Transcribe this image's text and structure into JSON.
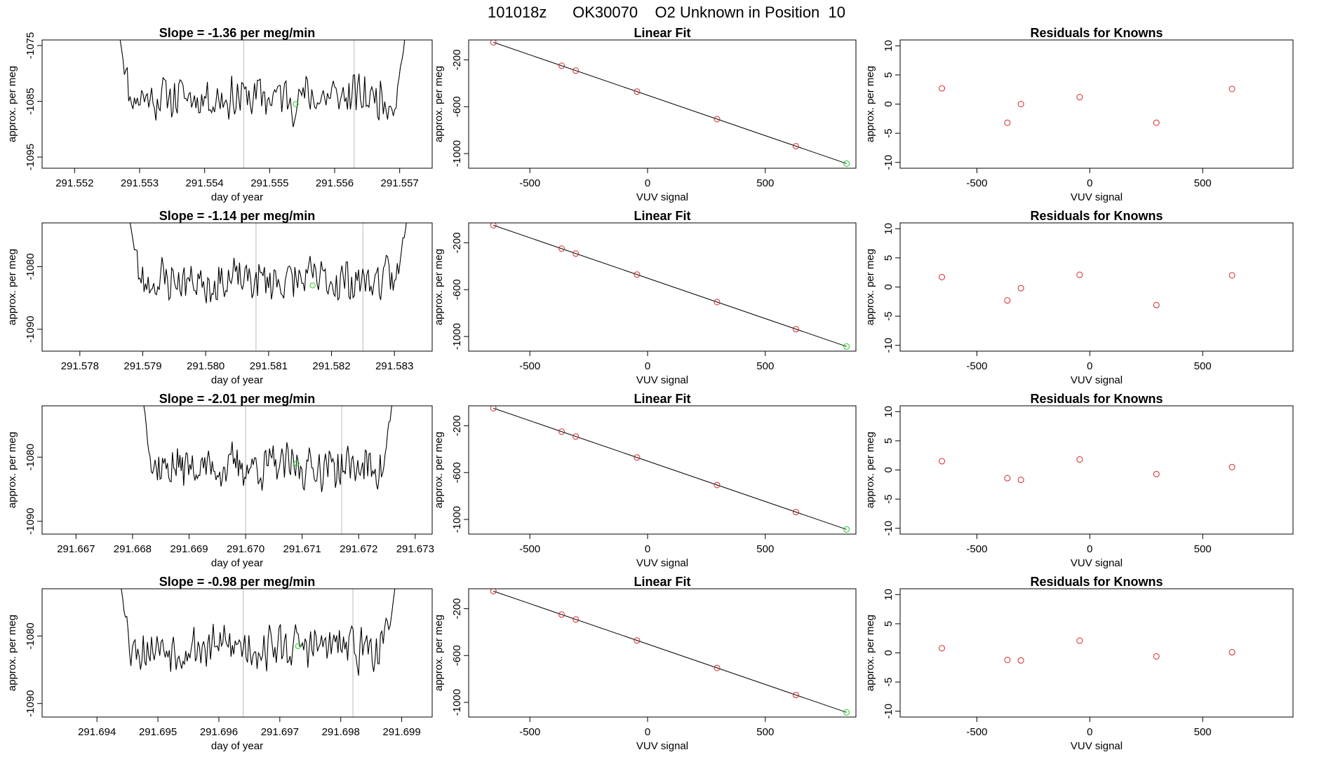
{
  "page_title": "101018z      OK30070    O2 Unknown in Position  10",
  "colors": {
    "line": "#000000",
    "known": "#d62728",
    "unknown": "#22cc22",
    "vline": "#bbbbbb"
  },
  "chart_data": [
    {
      "type": "line",
      "panel": "time",
      "row": 1,
      "title": "Slope =  -1.36  per meg/min",
      "xlabel": "day of year",
      "ylabel": "approx. per meg",
      "xlim": [
        291.5515,
        291.5575
      ],
      "xticks": [
        291.552,
        291.553,
        291.554,
        291.555,
        291.556,
        291.557
      ],
      "xtick_labels": [
        "291.552",
        "291.553",
        "291.554",
        "291.555",
        "291.556",
        "291.557"
      ],
      "ylim": [
        -1097,
        -1074
      ],
      "yticks": [
        -1095,
        -1085,
        -1075
      ],
      "ytick_labels": [
        "-1095",
        "-1085",
        "-1075"
      ],
      "vlines": [
        291.5546,
        291.5563
      ],
      "unknown_point": {
        "x": 291.5554,
        "y": -1085.5
      },
      "series": [
        {
          "name": "signal",
          "seed": 11,
          "x_start": 291.5527,
          "x_end": 291.5571,
          "mean": -1084.2,
          "amp": 3.2,
          "start_y": -1074,
          "end_y": -1072
        }
      ]
    },
    {
      "type": "scatter",
      "panel": "fit",
      "row": 1,
      "title": "Linear Fit",
      "xlabel": "VUV signal",
      "ylabel": "approx. per meg",
      "xlim": [
        -760,
        885
      ],
      "xticks": [
        -500,
        0,
        500
      ],
      "xtick_labels": [
        "-500",
        "0",
        "500"
      ],
      "ylim": [
        -1125,
        -30
      ],
      "yticks": [
        -200,
        -600,
        -1000
      ],
      "ytick_labels": [
        "-200",
        "-600",
        "-1000"
      ],
      "fit_line": [
        [
          -655,
          -50
        ],
        [
          845,
          -1085
        ]
      ],
      "knowns": [
        {
          "x": -655,
          "y": -50
        },
        {
          "x": -365,
          "y": -250
        },
        {
          "x": -305,
          "y": -292
        },
        {
          "x": -45,
          "y": -471
        },
        {
          "x": 295,
          "y": -706
        },
        {
          "x": 630,
          "y": -937
        }
      ],
      "unknown": {
        "x": 845,
        "y": -1085
      }
    },
    {
      "type": "scatter",
      "panel": "resid",
      "row": 1,
      "title": "Residuals for Knowns",
      "xlabel": "VUV signal",
      "ylabel": "approx. per meg",
      "xlim": [
        -840,
        900
      ],
      "xticks": [
        -500,
        0,
        500
      ],
      "xtick_labels": [
        "-500",
        "0",
        "500"
      ],
      "ylim": [
        -11,
        11
      ],
      "yticks": [
        -10,
        -5,
        0,
        5,
        10
      ],
      "ytick_labels": [
        "-10",
        "-5",
        "0",
        "5",
        "10"
      ],
      "points": [
        {
          "x": -655,
          "y": 2.7
        },
        {
          "x": -365,
          "y": -3.2
        },
        {
          "x": -305,
          "y": 0.0
        },
        {
          "x": -45,
          "y": 1.2
        },
        {
          "x": 295,
          "y": -3.2
        },
        {
          "x": 630,
          "y": 2.6
        }
      ]
    },
    {
      "type": "line",
      "panel": "time",
      "row": 2,
      "title": "Slope =  -1.14  per meg/min",
      "xlabel": "day of year",
      "ylabel": "approx. per meg",
      "xlim": [
        291.5774,
        291.5836
      ],
      "xticks": [
        291.578,
        291.579,
        291.58,
        291.581,
        291.582,
        291.583
      ],
      "xtick_labels": [
        "291.578",
        "291.579",
        "291.580",
        "291.581",
        "291.582",
        "291.583"
      ],
      "ylim": [
        -1093.5,
        -1073
      ],
      "yticks": [
        -1090,
        -1080
      ],
      "ytick_labels": [
        "-1090",
        "-1080"
      ],
      "vlines": [
        291.5808,
        291.5825
      ],
      "unknown_point": {
        "x": 291.5817,
        "y": -1083
      },
      "series": [
        {
          "name": "signal",
          "seed": 23,
          "x_start": 291.5788,
          "x_end": 291.5832,
          "mean": -1082.2,
          "amp": 2.8,
          "start_y": -1073,
          "end_y": -1072
        }
      ]
    },
    {
      "type": "scatter",
      "panel": "fit",
      "row": 2,
      "title": "Linear Fit",
      "xlabel": "VUV signal",
      "ylabel": "approx. per meg",
      "xlim": [
        -760,
        885
      ],
      "xticks": [
        -500,
        0,
        500
      ],
      "xtick_labels": [
        "-500",
        "0",
        "500"
      ],
      "ylim": [
        -1125,
        -30
      ],
      "yticks": [
        -200,
        -600,
        -1000
      ],
      "ytick_labels": [
        "-200",
        "-600",
        "-1000"
      ],
      "fit_line": [
        [
          -655,
          -50
        ],
        [
          845,
          -1085
        ]
      ],
      "knowns": [
        {
          "x": -655,
          "y": -50
        },
        {
          "x": -365,
          "y": -250
        },
        {
          "x": -305,
          "y": -292
        },
        {
          "x": -45,
          "y": -471
        },
        {
          "x": 295,
          "y": -706
        },
        {
          "x": 630,
          "y": -937
        }
      ],
      "unknown": {
        "x": 845,
        "y": -1085
      }
    },
    {
      "type": "scatter",
      "panel": "resid",
      "row": 2,
      "title": "Residuals for Knowns",
      "xlabel": "VUV signal",
      "ylabel": "approx. per meg",
      "xlim": [
        -840,
        900
      ],
      "xticks": [
        -500,
        0,
        500
      ],
      "xtick_labels": [
        "-500",
        "0",
        "500"
      ],
      "ylim": [
        -11,
        11
      ],
      "yticks": [
        -10,
        -5,
        0,
        5,
        10
      ],
      "ytick_labels": [
        "-10",
        "-5",
        "0",
        "5",
        "10"
      ],
      "points": [
        {
          "x": -655,
          "y": 1.7
        },
        {
          "x": -365,
          "y": -2.3
        },
        {
          "x": -305,
          "y": -0.2
        },
        {
          "x": -45,
          "y": 2.1
        },
        {
          "x": 295,
          "y": -3.1
        },
        {
          "x": 630,
          "y": 2.0
        }
      ]
    },
    {
      "type": "line",
      "panel": "time",
      "row": 3,
      "title": "Slope =  -2.01  per meg/min",
      "xlabel": "day of year",
      "ylabel": "approx. per meg",
      "xlim": [
        291.6664,
        291.6733
      ],
      "xticks": [
        291.667,
        291.668,
        291.669,
        291.67,
        291.671,
        291.672,
        291.673
      ],
      "xtick_labels": [
        "291.667",
        "291.668",
        "291.669",
        "291.670",
        "291.671",
        "291.672",
        "291.673"
      ],
      "ylim": [
        -1092,
        -1072
      ],
      "yticks": [
        -1090,
        -1080
      ],
      "ytick_labels": [
        "-1090",
        "-1080"
      ],
      "vlines": [
        291.67,
        291.6717
      ],
      "unknown_point": {
        "x": 291.6709,
        "y": -1081
      },
      "series": [
        {
          "name": "signal",
          "seed": 37,
          "x_start": 291.6682,
          "x_end": 291.6726,
          "mean": -1081.5,
          "amp": 2.6,
          "start_y": -1072,
          "end_y": -1071
        }
      ]
    },
    {
      "type": "scatter",
      "panel": "fit",
      "row": 3,
      "title": "Linear Fit",
      "xlabel": "VUV signal",
      "ylabel": "approx. per meg",
      "xlim": [
        -760,
        885
      ],
      "xticks": [
        -500,
        0,
        500
      ],
      "xtick_labels": [
        "-500",
        "0",
        "500"
      ],
      "ylim": [
        -1125,
        -30
      ],
      "yticks": [
        -200,
        -600,
        -1000
      ],
      "ytick_labels": [
        "-200",
        "-600",
        "-1000"
      ],
      "fit_line": [
        [
          -655,
          -50
        ],
        [
          845,
          -1085
        ]
      ],
      "knowns": [
        {
          "x": -655,
          "y": -50
        },
        {
          "x": -365,
          "y": -250
        },
        {
          "x": -305,
          "y": -292
        },
        {
          "x": -45,
          "y": -471
        },
        {
          "x": 295,
          "y": -706
        },
        {
          "x": 630,
          "y": -937
        }
      ],
      "unknown": {
        "x": 845,
        "y": -1085
      }
    },
    {
      "type": "scatter",
      "panel": "resid",
      "row": 3,
      "title": "Residuals for Knowns",
      "xlabel": "VUV signal",
      "ylabel": "approx. per meg",
      "xlim": [
        -840,
        900
      ],
      "xticks": [
        -500,
        0,
        500
      ],
      "xtick_labels": [
        "-500",
        "0",
        "500"
      ],
      "ylim": [
        -11,
        11
      ],
      "yticks": [
        -10,
        -5,
        0,
        5,
        10
      ],
      "ytick_labels": [
        "-10",
        "-5",
        "0",
        "5",
        "10"
      ],
      "points": [
        {
          "x": -655,
          "y": 1.5
        },
        {
          "x": -365,
          "y": -1.4
        },
        {
          "x": -305,
          "y": -1.7
        },
        {
          "x": -45,
          "y": 1.8
        },
        {
          "x": 295,
          "y": -0.7
        },
        {
          "x": 630,
          "y": 0.5
        }
      ]
    },
    {
      "type": "line",
      "panel": "time",
      "row": 4,
      "title": "Slope =  -0.98  per meg/min",
      "xlabel": "day of year",
      "ylabel": "approx. per meg",
      "xlim": [
        291.6931,
        291.6995
      ],
      "xticks": [
        291.694,
        291.695,
        291.696,
        291.697,
        291.698,
        291.699
      ],
      "xtick_labels": [
        "291.694",
        "291.695",
        "291.696",
        "291.697",
        "291.698",
        "291.699"
      ],
      "ylim": [
        -1092,
        -1073
      ],
      "yticks": [
        -1090,
        -1080
      ],
      "ytick_labels": [
        "-1090",
        "-1080"
      ],
      "vlines": [
        291.6964,
        291.6982
      ],
      "unknown_point": {
        "x": 291.6973,
        "y": -1081.5
      },
      "series": [
        {
          "name": "signal",
          "seed": 53,
          "x_start": 291.6944,
          "x_end": 291.6989,
          "mean": -1081.6,
          "amp": 2.6,
          "start_y": -1073,
          "end_y": -1072
        }
      ]
    },
    {
      "type": "scatter",
      "panel": "fit",
      "row": 4,
      "title": "Linear Fit",
      "xlabel": "VUV signal",
      "ylabel": "approx. per meg",
      "xlim": [
        -760,
        885
      ],
      "xticks": [
        -500,
        0,
        500
      ],
      "xtick_labels": [
        "-500",
        "0",
        "500"
      ],
      "ylim": [
        -1125,
        -30
      ],
      "yticks": [
        -200,
        -600,
        -1000
      ],
      "ytick_labels": [
        "-200",
        "-600",
        "-1000"
      ],
      "fit_line": [
        [
          -655,
          -50
        ],
        [
          845,
          -1085
        ]
      ],
      "knowns": [
        {
          "x": -655,
          "y": -50
        },
        {
          "x": -365,
          "y": -250
        },
        {
          "x": -305,
          "y": -292
        },
        {
          "x": -45,
          "y": -471
        },
        {
          "x": 295,
          "y": -706
        },
        {
          "x": 630,
          "y": -937
        }
      ],
      "unknown": {
        "x": 845,
        "y": -1085
      }
    },
    {
      "type": "scatter",
      "panel": "resid",
      "row": 4,
      "title": "Residuals for Knowns",
      "xlabel": "VUV signal",
      "ylabel": "approx. per meg",
      "xlim": [
        -840,
        900
      ],
      "xticks": [
        -500,
        0,
        500
      ],
      "xtick_labels": [
        "-500",
        "0",
        "500"
      ],
      "ylim": [
        -11,
        11
      ],
      "yticks": [
        -10,
        -5,
        0,
        5,
        10
      ],
      "ytick_labels": [
        "-10",
        "-5",
        "0",
        "5",
        "10"
      ],
      "points": [
        {
          "x": -655,
          "y": 0.8
        },
        {
          "x": -365,
          "y": -1.2
        },
        {
          "x": -305,
          "y": -1.3
        },
        {
          "x": -45,
          "y": 2.1
        },
        {
          "x": 295,
          "y": -0.6
        },
        {
          "x": 630,
          "y": 0.1
        }
      ]
    }
  ]
}
